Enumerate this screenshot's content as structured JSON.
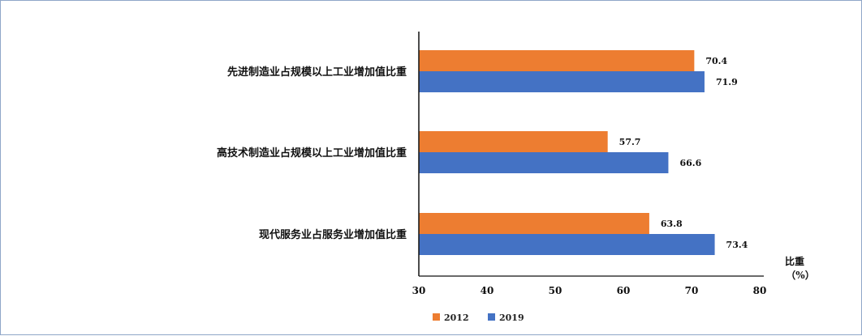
{
  "chart_data": {
    "type": "bar",
    "orientation": "horizontal",
    "categories": [
      "先进制造业占规模以上工业增加值比重",
      "高技术制造业占规模以上工业增加值比重",
      "现代服务业占服务业增加值比重"
    ],
    "series": [
      {
        "name": "2012",
        "color": "#ed7d31",
        "values": [
          70.4,
          57.7,
          63.8
        ]
      },
      {
        "name": "2019",
        "color": "#4472c4",
        "values": [
          71.9,
          66.6,
          73.4
        ]
      }
    ],
    "x_ticks": [
      "30",
      "40",
      "50",
      "60",
      "70",
      "80"
    ],
    "xlim": [
      30,
      80
    ],
    "xlabel_line1": "比重",
    "xlabel_line2": "（%）",
    "legend_position": "bottom-left",
    "grid": false
  }
}
